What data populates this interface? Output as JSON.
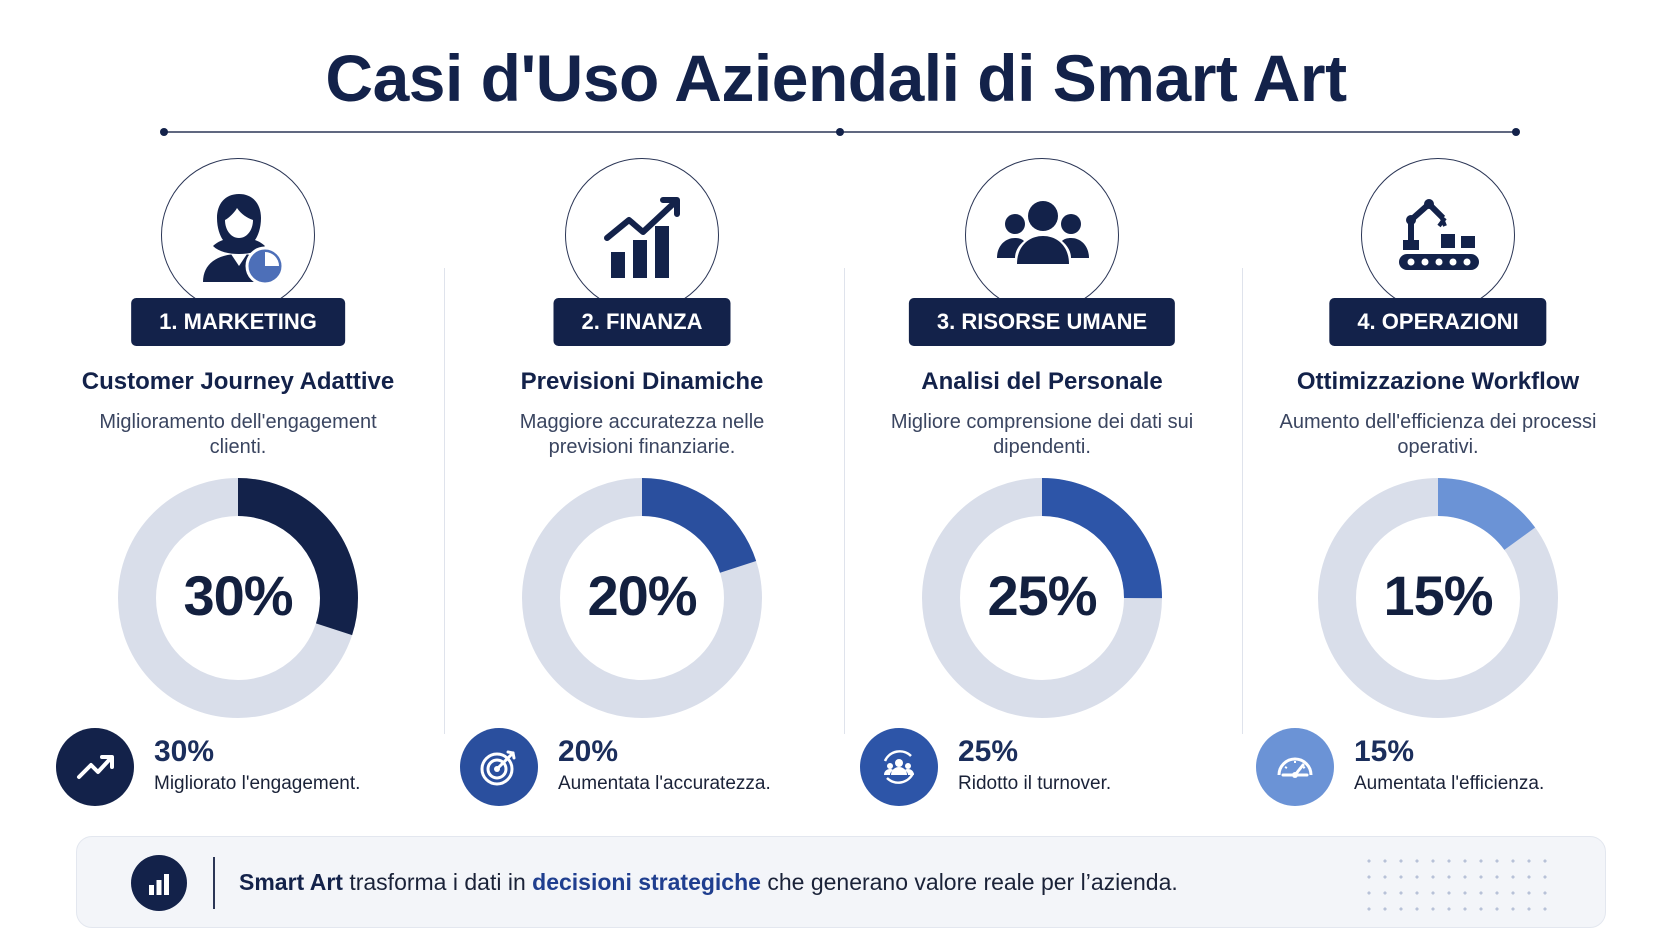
{
  "title": "Casi d'Uso Aziendali di Smart Art",
  "colors": {
    "navy": "#13224a",
    "blue": "#2a4f9e",
    "blue_mid": "#2d55a8",
    "blue_light": "#6b93d6",
    "track": "#d9deea"
  },
  "cards": [
    {
      "tag": "1. MARKETING",
      "icon": "user-chart-icon",
      "subtitle": "Customer Journey Adattive",
      "description": "Miglioramento dell'engagement clienti.",
      "percent_label": "30%",
      "percent_value": 30,
      "ring_color": "#13224a",
      "stat_icon": "trend-up-icon",
      "stat_icon_bg": "#13224a",
      "stat_value": "30%",
      "stat_text": "Migliorato l'engagement."
    },
    {
      "tag": "2. FINANZA",
      "icon": "growth-chart-icon",
      "subtitle": "Previsioni Dinamiche",
      "description": "Maggiore accuratezza nelle previsioni finanziarie.",
      "percent_label": "20%",
      "percent_value": 20,
      "ring_color": "#2a4f9e",
      "stat_icon": "target-icon",
      "stat_icon_bg": "#2a4f9e",
      "stat_value": "20%",
      "stat_text": "Aumentata l'accuratezza."
    },
    {
      "tag": "3. RISORSE UMANE",
      "icon": "team-icon",
      "subtitle": "Analisi del Personale",
      "description": "Migliore comprensione dei dati sui dipendenti.",
      "percent_label": "25%",
      "percent_value": 25,
      "ring_color": "#2d55a8",
      "stat_icon": "team-cycle-icon",
      "stat_icon_bg": "#2d55a8",
      "stat_value": "25%",
      "stat_text": "Ridotto il turnover."
    },
    {
      "tag": "4. OPERAZIONI",
      "icon": "robot-conveyor-icon",
      "subtitle": "Ottimizzazione Workflow",
      "description": "Aumento dell'efficienza dei processi operativi.",
      "percent_label": "15%",
      "percent_value": 15,
      "ring_color": "#6b93d6",
      "stat_icon": "speedometer-icon",
      "stat_icon_bg": "#6b93d6",
      "stat_value": "15%",
      "stat_text": "Aumentata l'efficienza."
    }
  ],
  "footer": {
    "icon": "bar-chart-icon",
    "brand": "Smart Art",
    "text_before": " trasforma i dati in ",
    "highlight": "decisioni strategiche",
    "text_after": " che generano valore reale per l’azienda."
  }
}
